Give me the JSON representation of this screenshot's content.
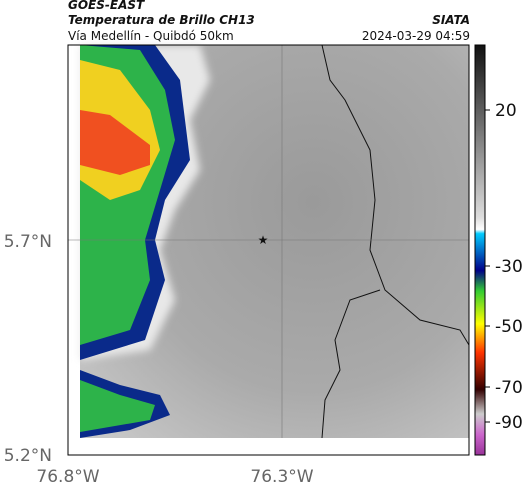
{
  "header": {
    "title": "GOES-EAST",
    "subtitle": "Temperatura de Brillo CH13",
    "region": "Vía Medellín - Quibdó 50km",
    "source": "SIATA",
    "timestamp": "2024-03-29 04:59"
  },
  "axes": {
    "y_labels": [
      "5.7°N",
      "5.2°N"
    ],
    "x_labels": [
      "76.8°W",
      "76.3°W"
    ]
  },
  "colorbar": {
    "ticks": [
      20,
      -30,
      -50,
      -70,
      -90
    ]
  }
}
